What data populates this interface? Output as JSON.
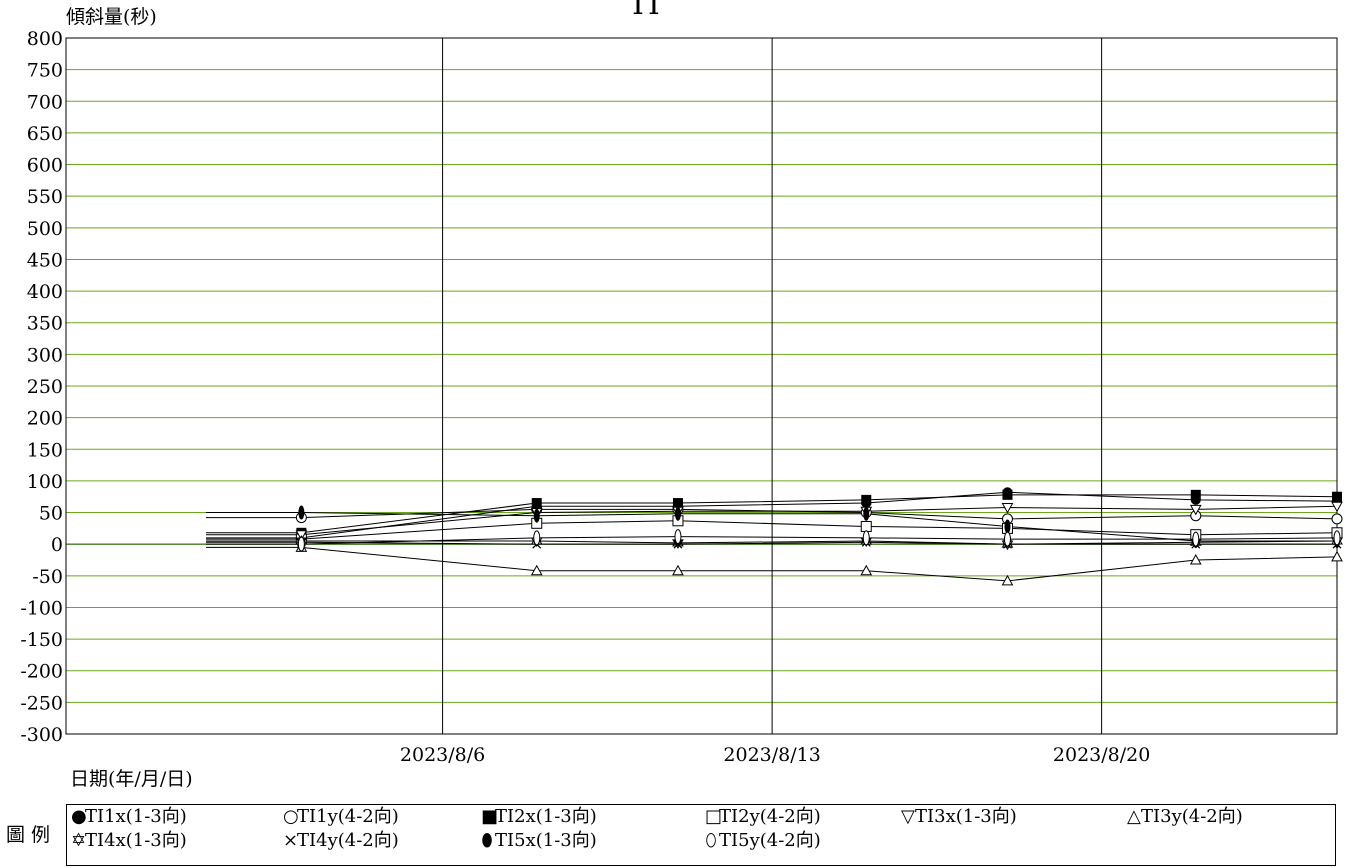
{
  "chart_data": {
    "type": "line",
    "title": "TI",
    "ylabel": "傾斜量(秒)",
    "xlabel": "日期(年/月/日)",
    "ylim": [
      -300,
      800
    ],
    "yticks": [
      800,
      750,
      700,
      650,
      600,
      550,
      500,
      450,
      400,
      350,
      300,
      250,
      200,
      150,
      100,
      50,
      0,
      -50,
      -100,
      -150,
      -200,
      -250,
      -300
    ],
    "xlim": [
      "2023-07-29",
      "2023-08-25"
    ],
    "xticks": [
      {
        "label": "2023/8/6",
        "date": "2023-08-06"
      },
      {
        "label": "2023/8/13",
        "date": "2023-08-13"
      },
      {
        "label": "2023/8/20",
        "date": "2023-08-20"
      }
    ],
    "x": [
      "2023-08-03",
      "2023-08-08",
      "2023-08-11",
      "2023-08-15",
      "2023-08-18",
      "2023-08-22",
      "2023-08-25"
    ],
    "grid": {
      "horizontal": true,
      "vertical_at_ticks": true
    },
    "legend_title": "圖 例",
    "legend_position": "bottom",
    "series": [
      {
        "name": "TI1x(1-3向)",
        "marker": "●",
        "values": [
          10,
          60,
          60,
          65,
          82,
          70,
          68
        ]
      },
      {
        "name": "TI1y(4-2向)",
        "marker": "○",
        "values": [
          42,
          55,
          55,
          50,
          40,
          45,
          40
        ]
      },
      {
        "name": "TI2x(1-3向)",
        "marker": "■",
        "values": [
          18,
          65,
          65,
          70,
          78,
          78,
          75
        ]
      },
      {
        "name": "TI2y(4-2向)",
        "marker": "□",
        "values": [
          8,
          33,
          37,
          28,
          25,
          15,
          18
        ]
      },
      {
        "name": "TI3x(1-3向)",
        "marker": "▽",
        "values": [
          15,
          50,
          52,
          52,
          58,
          55,
          60
        ]
      },
      {
        "name": "TI3y(4-2向)",
        "marker": "△",
        "values": [
          -5,
          -42,
          -42,
          -42,
          -58,
          -25,
          -20
        ]
      },
      {
        "name": "TI4x(1-3向)",
        "marker": "✡",
        "values": [
          5,
          5,
          2,
          5,
          0,
          3,
          5
        ]
      },
      {
        "name": "TI4y(4-2向)",
        "marker": "×",
        "values": [
          3,
          0,
          0,
          3,
          0,
          0,
          0
        ]
      },
      {
        "name": "TI5x(1-3向)",
        "marker": "⬮",
        "values": [
          50,
          45,
          48,
          48,
          28,
          5,
          5
        ]
      },
      {
        "name": "TI5y(4-2向)",
        "marker": "⬯",
        "values": [
          0,
          10,
          12,
          10,
          8,
          8,
          10
        ]
      }
    ]
  }
}
